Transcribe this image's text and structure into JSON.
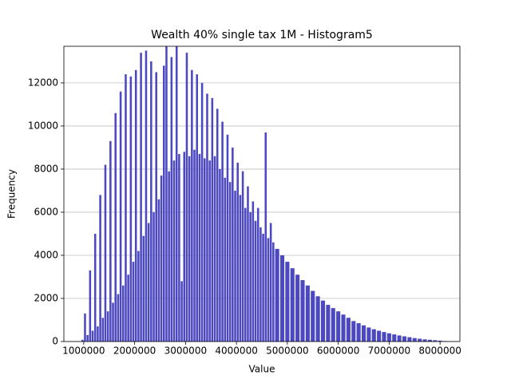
{
  "chart_data": {
    "type": "histogram",
    "title": "Wealth 40% single tax 1M - Histogram5",
    "x_label": "Value",
    "y_label": "Frequency",
    "color": "#4c48c0",
    "grid": true,
    "bins": [
      950000,
      1000000,
      1050000,
      1100000,
      1150000,
      1200000,
      1250000,
      1300000,
      1350000,
      1400000,
      1450000,
      1500000,
      1550000,
      1600000,
      1650000,
      1700000,
      1750000,
      1800000,
      1850000,
      1900000,
      1950000,
      2000000,
      2050000,
      2100000,
      2150000,
      2200000,
      2250000,
      2300000,
      2350000,
      2400000,
      2450000,
      2500000,
      2550000,
      2600000,
      2650000,
      2700000,
      2750000,
      2800000,
      2850000,
      2900000,
      2950000,
      3000000,
      3050000,
      3100000,
      3150000,
      3200000,
      3250000,
      3300000,
      3350000,
      3400000,
      3450000,
      3500000,
      3550000,
      3600000,
      3650000,
      3700000,
      3750000,
      3800000,
      3850000,
      3900000,
      3950000,
      4000000,
      4050000,
      4100000,
      4150000,
      4200000,
      4250000,
      4300000,
      4350000,
      4400000,
      4450000,
      4500000,
      4550000,
      4600000,
      4650000,
      4700000,
      4750000,
      4850000,
      4950000,
      5050000,
      5150000,
      5250000,
      5350000,
      5450000,
      5550000,
      5650000,
      5750000,
      5850000,
      5950000,
      6050000,
      6150000,
      6250000,
      6350000,
      6450000,
      6550000,
      6650000,
      6750000,
      6850000,
      6950000,
      7050000,
      7150000,
      7250000,
      7350000,
      7450000,
      7550000,
      7650000,
      7750000,
      7850000,
      7950000,
      8050000,
      8150000
    ],
    "counts": [
      80,
      1300,
      300,
      3300,
      500,
      5000,
      700,
      6800,
      1100,
      8200,
      1400,
      9300,
      1800,
      10600,
      2200,
      11600,
      2600,
      12400,
      3100,
      12300,
      3700,
      12600,
      4200,
      13400,
      4900,
      13500,
      5500,
      13000,
      6000,
      12500,
      6600,
      7700,
      12800,
      13700,
      7900,
      13200,
      8400,
      13700,
      8700,
      2800,
      8800,
      13400,
      8600,
      12600,
      8900,
      12400,
      8700,
      12000,
      8500,
      11500,
      8400,
      11300,
      8600,
      10800,
      8000,
      10200,
      7600,
      9600,
      7400,
      9000,
      7000,
      8300,
      6800,
      7900,
      6200,
      7200,
      6000,
      6500,
      5600,
      6200,
      5300,
      5000,
      9700,
      4800,
      5500,
      4600,
      4300,
      4000,
      3700,
      3400,
      3100,
      2850,
      2600,
      2350,
      2100,
      1900,
      1700,
      1550,
      1400,
      1250,
      1100,
      950,
      850,
      750,
      650,
      570,
      500,
      440,
      380,
      330,
      280,
      240,
      200,
      160,
      130,
      100,
      80,
      60,
      40,
      20
    ],
    "xlim": [
      610000,
      8390000
    ],
    "ylim": [
      0,
      13700
    ],
    "xticks": [
      1000000,
      2000000,
      3000000,
      4000000,
      5000000,
      6000000,
      7000000,
      8000000
    ],
    "yticks": [
      0,
      2000,
      4000,
      6000,
      8000,
      10000,
      12000
    ]
  }
}
